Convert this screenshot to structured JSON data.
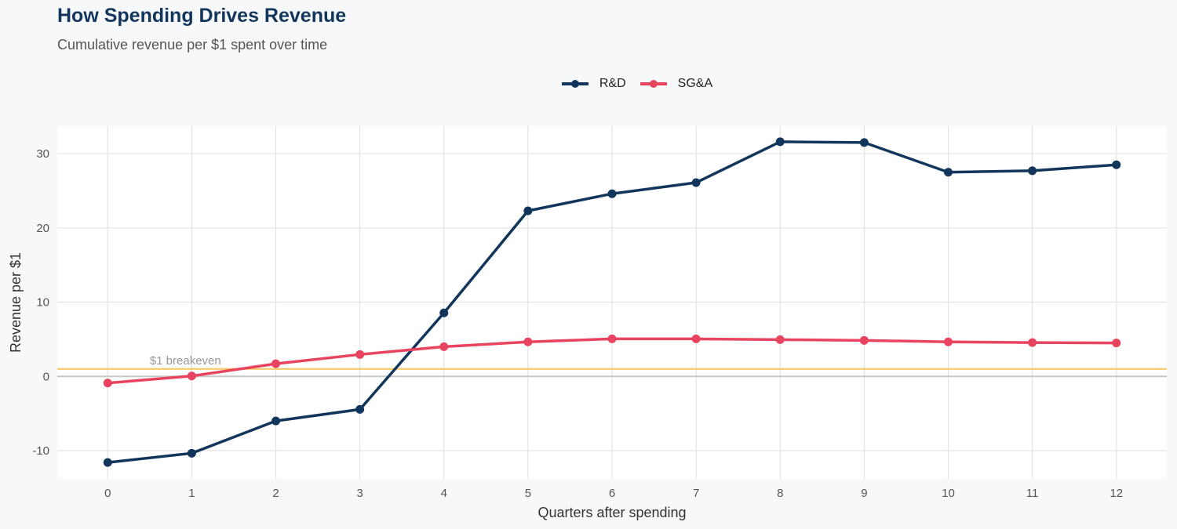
{
  "chart_data": {
    "type": "line",
    "title": "How Spending Drives Revenue",
    "subtitle": "Cumulative revenue per $1 spent over time",
    "xlabel": "Quarters after spending",
    "ylabel": "Revenue per $1",
    "x": [
      0,
      1,
      2,
      3,
      4,
      5,
      6,
      7,
      8,
      9,
      10,
      11,
      12
    ],
    "xlim": [
      -0.6,
      12.6
    ],
    "ylim": [
      -13.8,
      33.7
    ],
    "yticks": [
      -10,
      0,
      10,
      20,
      30
    ],
    "ytick_labels": [
      "-10",
      "0",
      "10",
      "20",
      "30"
    ],
    "xtick_labels": [
      "0",
      "1",
      "2",
      "3",
      "4",
      "5",
      "6",
      "7",
      "8",
      "9",
      "10",
      "11",
      "12"
    ],
    "grid": true,
    "legend": "top-center",
    "series": [
      {
        "name": "R&D",
        "color": "#12355b",
        "values": [
          -11.6,
          -10.35,
          -6.0,
          -4.45,
          8.55,
          22.3,
          24.6,
          26.1,
          31.6,
          31.5,
          27.5,
          27.7,
          28.5
        ]
      },
      {
        "name": "SG&A",
        "color": "#e8435f",
        "values": [
          -0.9,
          0.05,
          1.7,
          2.95,
          4.0,
          4.65,
          5.05,
          5.05,
          4.95,
          4.85,
          4.65,
          4.55,
          4.5
        ]
      }
    ],
    "reference_line": {
      "y": 1,
      "label": "$1 breakeven",
      "color": "#f7c65c"
    }
  }
}
